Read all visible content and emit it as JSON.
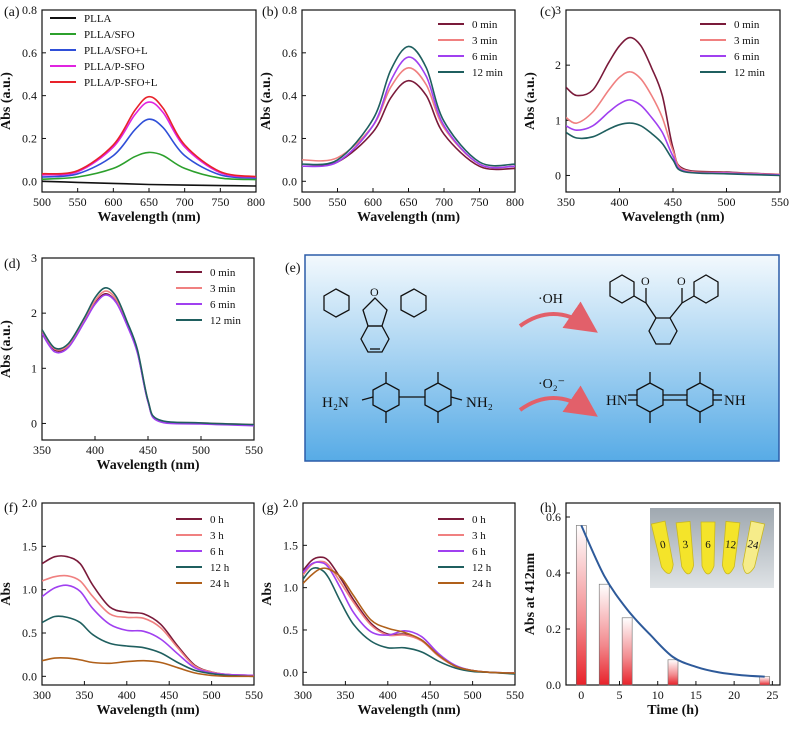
{
  "chart_data": [
    {
      "type": "line",
      "label": "(a)",
      "xlabel": "Wavelength (nm)",
      "ylabel": "Abs (a.u.)",
      "xlim": [
        500,
        800
      ],
      "ylim": [
        -0.05,
        0.8
      ],
      "xticks": [
        500,
        550,
        600,
        650,
        700,
        750,
        800
      ],
      "yticks": [
        0.0,
        0.2,
        0.4,
        0.6,
        0.8
      ],
      "legend": "top-left",
      "series": [
        {
          "name": "PLLA",
          "color": "#111111",
          "x": [
            500,
            550,
            600,
            650,
            700,
            750,
            800
          ],
          "y": [
            0.0,
            -0.005,
            -0.01,
            -0.015,
            -0.018,
            -0.02,
            -0.022
          ]
        },
        {
          "name": "PLLA/SFO",
          "color": "#2ca02c",
          "x": [
            500,
            550,
            600,
            630,
            650,
            670,
            700,
            750,
            800
          ],
          "y": [
            0.01,
            0.02,
            0.06,
            0.115,
            0.135,
            0.12,
            0.06,
            0.015,
            0.008
          ]
        },
        {
          "name": "PLLA/SFO+L",
          "color": "#2f4fd8",
          "x": [
            500,
            550,
            600,
            630,
            650,
            670,
            700,
            750,
            800
          ],
          "y": [
            0.02,
            0.035,
            0.12,
            0.24,
            0.29,
            0.25,
            0.12,
            0.03,
            0.015
          ]
        },
        {
          "name": "PLLA/P-SFO",
          "color": "#e024e0",
          "x": [
            500,
            550,
            600,
            630,
            650,
            670,
            700,
            750,
            800
          ],
          "y": [
            0.03,
            0.045,
            0.16,
            0.31,
            0.37,
            0.32,
            0.16,
            0.04,
            0.02
          ]
        },
        {
          "name": "PLLA/P-SFO+L",
          "color": "#e8222a",
          "x": [
            500,
            550,
            600,
            630,
            650,
            670,
            700,
            750,
            800
          ],
          "y": [
            0.035,
            0.05,
            0.17,
            0.33,
            0.395,
            0.34,
            0.17,
            0.045,
            0.022
          ]
        }
      ]
    },
    {
      "type": "line",
      "label": "(b)",
      "xlabel": "Wavelength (nm)",
      "ylabel": "Abs (a.u.)",
      "xlim": [
        500,
        800
      ],
      "ylim": [
        -0.05,
        0.8
      ],
      "xticks": [
        500,
        550,
        600,
        650,
        700,
        750,
        800
      ],
      "yticks": [
        0.0,
        0.2,
        0.4,
        0.6,
        0.8
      ],
      "legend": "top-right",
      "series": [
        {
          "name": "0 min",
          "color": "#7a1a3a",
          "x": [
            500,
            550,
            600,
            625,
            650,
            675,
            700,
            750,
            800
          ],
          "y": [
            0.07,
            0.09,
            0.23,
            0.39,
            0.47,
            0.4,
            0.22,
            0.07,
            0.06
          ]
        },
        {
          "name": "3 min",
          "color": "#f08080",
          "x": [
            500,
            550,
            600,
            625,
            650,
            675,
            700,
            750,
            800
          ],
          "y": [
            0.1,
            0.11,
            0.26,
            0.44,
            0.53,
            0.45,
            0.25,
            0.08,
            0.07
          ]
        },
        {
          "name": "6 min",
          "color": "#a040f0",
          "x": [
            500,
            550,
            600,
            625,
            650,
            675,
            700,
            750,
            800
          ],
          "y": [
            0.07,
            0.09,
            0.26,
            0.47,
            0.58,
            0.49,
            0.26,
            0.08,
            0.07
          ]
        },
        {
          "name": "12 min",
          "color": "#1f5f5f",
          "x": [
            500,
            550,
            600,
            625,
            650,
            675,
            700,
            750,
            800
          ],
          "y": [
            0.08,
            0.1,
            0.29,
            0.52,
            0.63,
            0.53,
            0.28,
            0.09,
            0.08
          ]
        }
      ]
    },
    {
      "type": "line",
      "label": "(c)",
      "xlabel": "Wavelength (nm)",
      "ylabel": "Abs (a.u.)",
      "xlim": [
        350,
        550
      ],
      "ylim": [
        -0.3,
        3
      ],
      "xticks": [
        350,
        400,
        450,
        500,
        550
      ],
      "yticks": [
        0,
        1,
        2,
        3
      ],
      "legend": "top-right",
      "series": [
        {
          "name": "0 min",
          "color": "#7a1a3a",
          "x": [
            350,
            360,
            375,
            390,
            400,
            410,
            420,
            430,
            440,
            450,
            460,
            500,
            550
          ],
          "y": [
            1.6,
            1.45,
            1.55,
            2.05,
            2.35,
            2.5,
            2.35,
            1.95,
            1.45,
            0.5,
            0.12,
            0.06,
            0.02
          ]
        },
        {
          "name": "3 min",
          "color": "#f08080",
          "x": [
            350,
            360,
            375,
            390,
            400,
            410,
            420,
            430,
            440,
            450,
            460,
            500,
            550
          ],
          "y": [
            1.05,
            0.95,
            1.15,
            1.55,
            1.78,
            1.88,
            1.75,
            1.45,
            1.05,
            0.45,
            0.1,
            0.05,
            0.02
          ]
        },
        {
          "name": "6 min",
          "color": "#a040f0",
          "x": [
            350,
            360,
            375,
            390,
            400,
            410,
            420,
            430,
            440,
            450,
            460,
            500,
            550
          ],
          "y": [
            0.9,
            0.82,
            0.9,
            1.15,
            1.3,
            1.37,
            1.27,
            1.05,
            0.78,
            0.35,
            0.08,
            0.04,
            0.01
          ]
        },
        {
          "name": "12 min",
          "color": "#1f5f5f",
          "x": [
            350,
            360,
            375,
            390,
            400,
            410,
            420,
            430,
            440,
            450,
            460,
            500,
            550
          ],
          "y": [
            0.78,
            0.68,
            0.7,
            0.84,
            0.92,
            0.95,
            0.9,
            0.76,
            0.58,
            0.28,
            0.07,
            0.03,
            0.0
          ]
        }
      ]
    },
    {
      "type": "line",
      "label": "(d)",
      "xlabel": "Wavelength (nm)",
      "ylabel": "Abs (a.u.)",
      "xlim": [
        350,
        550
      ],
      "ylim": [
        -0.3,
        3
      ],
      "xticks": [
        350,
        400,
        450,
        500,
        550
      ],
      "yticks": [
        0,
        1,
        2,
        3
      ],
      "legend": "top-right",
      "series": [
        {
          "name": "0 min",
          "color": "#7a1a3a",
          "x": [
            350,
            362,
            375,
            390,
            400,
            410,
            420,
            430,
            440,
            450,
            460,
            500,
            550
          ],
          "y": [
            1.65,
            1.33,
            1.4,
            1.85,
            2.18,
            2.35,
            2.2,
            1.8,
            1.3,
            0.4,
            0.05,
            0.0,
            -0.03
          ]
        },
        {
          "name": "3 min",
          "color": "#f08080",
          "x": [
            350,
            362,
            375,
            390,
            400,
            410,
            420,
            430,
            440,
            450,
            460,
            500,
            550
          ],
          "y": [
            1.68,
            1.35,
            1.42,
            1.88,
            2.22,
            2.4,
            2.25,
            1.83,
            1.32,
            0.41,
            0.06,
            0.01,
            -0.02
          ]
        },
        {
          "name": "6 min",
          "color": "#a040f0",
          "x": [
            350,
            362,
            375,
            390,
            400,
            410,
            420,
            430,
            440,
            450,
            460,
            500,
            550
          ],
          "y": [
            1.63,
            1.3,
            1.38,
            1.84,
            2.16,
            2.33,
            2.19,
            1.79,
            1.28,
            0.39,
            0.04,
            -0.01,
            -0.04
          ]
        },
        {
          "name": "12 min",
          "color": "#1f5f5f",
          "x": [
            350,
            362,
            375,
            390,
            400,
            410,
            420,
            430,
            440,
            450,
            460,
            500,
            550
          ],
          "y": [
            1.7,
            1.37,
            1.45,
            1.92,
            2.28,
            2.46,
            2.3,
            1.86,
            1.34,
            0.42,
            0.07,
            0.01,
            -0.02
          ]
        }
      ]
    },
    {
      "type": "line",
      "label": "(f)",
      "xlabel": "Wavelength (nm)",
      "ylabel": "Abs",
      "xlim": [
        300,
        550
      ],
      "ylim": [
        -0.1,
        2.0
      ],
      "xticks": [
        300,
        350,
        400,
        450,
        500,
        550
      ],
      "yticks": [
        0.0,
        0.5,
        1.0,
        1.5,
        2.0
      ],
      "legend": "top-right",
      "series": [
        {
          "name": "0 h",
          "color": "#7a1a3a",
          "x": [
            300,
            315,
            330,
            345,
            360,
            380,
            400,
            420,
            440,
            460,
            480,
            500,
            520,
            550
          ],
          "y": [
            1.3,
            1.38,
            1.38,
            1.3,
            1.05,
            0.8,
            0.74,
            0.72,
            0.6,
            0.35,
            0.13,
            0.05,
            0.02,
            0.01
          ]
        },
        {
          "name": "3 h",
          "color": "#f08080",
          "x": [
            300,
            315,
            330,
            345,
            360,
            380,
            400,
            420,
            440,
            460,
            480,
            500,
            520,
            550
          ],
          "y": [
            1.1,
            1.15,
            1.16,
            1.1,
            0.92,
            0.72,
            0.68,
            0.67,
            0.56,
            0.33,
            0.12,
            0.05,
            0.02,
            0.01
          ]
        },
        {
          "name": "6 h",
          "color": "#a040f0",
          "x": [
            300,
            315,
            330,
            345,
            360,
            380,
            400,
            420,
            440,
            460,
            480,
            500,
            520,
            550
          ],
          "y": [
            0.92,
            1.02,
            1.05,
            0.98,
            0.78,
            0.6,
            0.53,
            0.52,
            0.43,
            0.26,
            0.1,
            0.04,
            0.02,
            0.01
          ]
        },
        {
          "name": "12 h",
          "color": "#1f5f5f",
          "x": [
            300,
            315,
            330,
            345,
            360,
            380,
            400,
            420,
            440,
            460,
            480,
            500,
            520,
            550
          ],
          "y": [
            0.62,
            0.69,
            0.68,
            0.62,
            0.48,
            0.38,
            0.35,
            0.33,
            0.27,
            0.16,
            0.07,
            0.03,
            0.01,
            0.0
          ]
        },
        {
          "name": "24 h",
          "color": "#b0601a",
          "x": [
            300,
            315,
            330,
            345,
            360,
            380,
            400,
            420,
            440,
            460,
            480,
            500,
            520,
            550
          ],
          "y": [
            0.18,
            0.21,
            0.21,
            0.19,
            0.16,
            0.15,
            0.17,
            0.18,
            0.16,
            0.1,
            0.04,
            0.01,
            0.0,
            0.0
          ]
        }
      ]
    },
    {
      "type": "line",
      "label": "(g)",
      "xlabel": "Wavelength (nm)",
      "ylabel": "Abs",
      "xlim": [
        300,
        550
      ],
      "ylim": [
        -0.15,
        2.0
      ],
      "xticks": [
        300,
        350,
        400,
        450,
        500,
        550
      ],
      "yticks": [
        0.0,
        0.5,
        1.0,
        1.5,
        2.0
      ],
      "legend": "top-right",
      "series": [
        {
          "name": "0 h",
          "color": "#7a1a3a",
          "x": [
            300,
            310,
            320,
            330,
            345,
            360,
            380,
            400,
            420,
            440,
            460,
            480,
            500,
            520,
            550
          ],
          "y": [
            1.2,
            1.32,
            1.36,
            1.32,
            1.1,
            0.85,
            0.58,
            0.45,
            0.45,
            0.38,
            0.2,
            0.07,
            0.02,
            0.0,
            -0.01
          ]
        },
        {
          "name": "3 h",
          "color": "#f08080",
          "x": [
            300,
            310,
            320,
            330,
            345,
            360,
            380,
            400,
            420,
            440,
            460,
            480,
            500,
            520,
            550
          ],
          "y": [
            1.15,
            1.27,
            1.31,
            1.27,
            1.05,
            0.82,
            0.56,
            0.44,
            0.44,
            0.37,
            0.19,
            0.07,
            0.02,
            0.0,
            -0.01
          ]
        },
        {
          "name": "6 h",
          "color": "#a040f0",
          "x": [
            300,
            310,
            320,
            330,
            345,
            360,
            380,
            400,
            420,
            440,
            460,
            480,
            500,
            520,
            550
          ],
          "y": [
            1.18,
            1.28,
            1.3,
            1.24,
            0.98,
            0.7,
            0.48,
            0.44,
            0.49,
            0.42,
            0.22,
            0.08,
            0.02,
            0.0,
            -0.01
          ]
        },
        {
          "name": "12 h",
          "color": "#1f5f5f",
          "x": [
            300,
            310,
            320,
            330,
            345,
            360,
            380,
            400,
            420,
            440,
            460,
            480,
            500,
            520,
            550
          ],
          "y": [
            1.1,
            1.22,
            1.22,
            1.12,
            0.82,
            0.56,
            0.37,
            0.29,
            0.29,
            0.24,
            0.13,
            0.05,
            0.01,
            0.0,
            -0.02
          ]
        },
        {
          "name": "24 h",
          "color": "#b0601a",
          "x": [
            300,
            310,
            320,
            330,
            345,
            360,
            380,
            400,
            420,
            440,
            460,
            480,
            500,
            520,
            550
          ],
          "y": [
            1.05,
            1.15,
            1.22,
            1.22,
            1.12,
            0.9,
            0.62,
            0.52,
            0.47,
            0.38,
            0.2,
            0.07,
            0.02,
            0.0,
            -0.01
          ]
        }
      ]
    },
    {
      "type": "bar",
      "label": "(h)",
      "xlabel": "Time (h)",
      "ylabel": "Abs at 412nm",
      "xlim": [
        -2,
        26
      ],
      "ylim": [
        0,
        0.65
      ],
      "xticks": [
        0,
        5,
        10,
        15,
        20,
        25
      ],
      "yticks": [
        0.0,
        0.2,
        0.4,
        0.6
      ],
      "bar_x": [
        0,
        3,
        6,
        12,
        24
      ],
      "bar_values": [
        0.57,
        0.36,
        0.24,
        0.09,
        0.03
      ],
      "fit_curve": {
        "type": "exponential decay",
        "x": [
          0,
          3,
          6,
          9,
          12,
          15,
          18,
          21,
          24
        ],
        "y": [
          0.57,
          0.39,
          0.27,
          0.18,
          0.1,
          0.065,
          0.045,
          0.035,
          0.03
        ]
      },
      "inset_photo_labels": [
        "0",
        "3",
        "6",
        "12",
        "24"
      ]
    }
  ],
  "scheme_e": {
    "label": "(e)",
    "reaction1_reagent": "·OH",
    "reaction2_reagent": "·O₂⁻",
    "reactant2_left_group": "H₂N",
    "reactant2_right_group": "NH₂",
    "product2_left_group": "HN",
    "product2_right_group": "NH",
    "product1_o1": "O",
    "product1_o2": "O",
    "reactant1_o": "O"
  },
  "colors": {
    "scheme_bg_top": "#eef6fc",
    "scheme_bg_bottom": "#5aaee8",
    "scheme_border": "#2b5ca8",
    "arrow": "#e2606a",
    "fit_curve": "#2e5a9a",
    "bar_red": "#e8222a"
  }
}
